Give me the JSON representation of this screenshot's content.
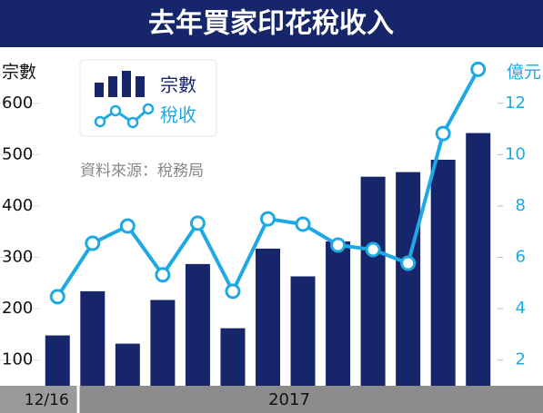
{
  "chart_data": {
    "type": "bar_line",
    "title": "去年買家印花稅收入",
    "categories": [
      "12/16",
      null,
      null,
      null,
      null,
      null,
      null,
      null,
      null,
      null,
      null,
      null,
      null
    ],
    "year_label": "2017",
    "y_label": "宗數",
    "y2_label": "億元",
    "source": "資料來源：稅務局",
    "series": [
      {
        "name": "宗數",
        "kind": "bar",
        "color": "#17266b",
        "values": [
          148,
          234,
          132,
          217,
          287,
          162,
          317,
          263,
          331,
          457,
          466,
          490,
          542
        ]
      },
      {
        "name": "稅收",
        "kind": "line",
        "axis": "y2",
        "color": "#1ea8e4",
        "values": [
          4.47,
          6.55,
          7.22,
          5.32,
          7.33,
          4.68,
          7.5,
          7.29,
          6.48,
          6.3,
          5.77,
          10.82,
          13.32
        ]
      }
    ],
    "ylim": [
      50,
      695
    ],
    "yticks": [
      100,
      200,
      300,
      400,
      500,
      600
    ],
    "y2lim": [
      1,
      13.9
    ],
    "y2ticks": [
      2,
      4,
      6,
      8,
      10,
      12
    ],
    "grid": true
  }
}
